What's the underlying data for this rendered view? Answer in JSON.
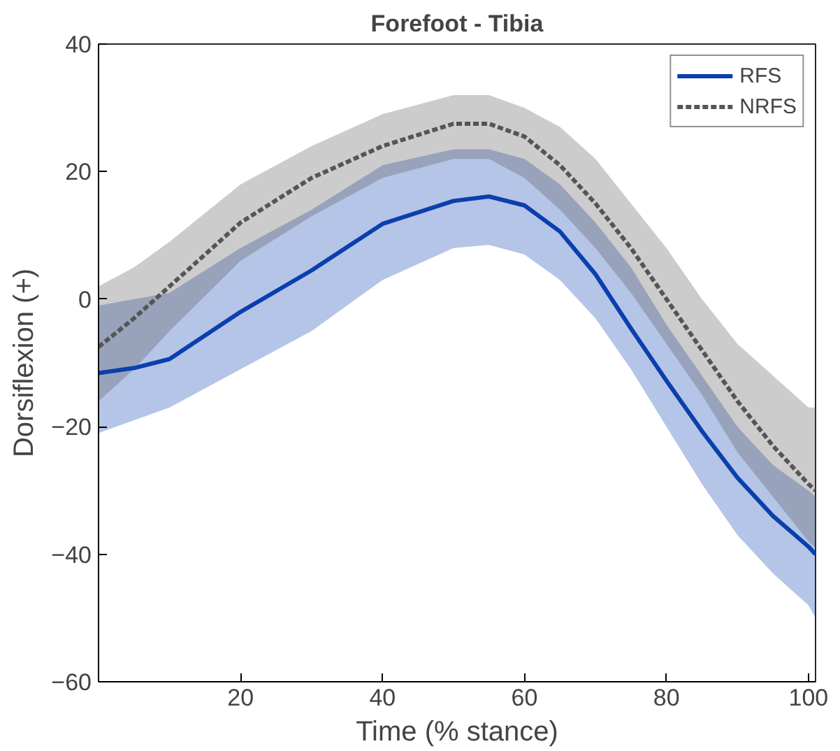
{
  "chart_data": {
    "type": "line",
    "title": "Forefoot - Tibia",
    "xlabel": "Time (% stance)",
    "ylabel": "Dorsiflexion (+)",
    "x": [
      0,
      5,
      10,
      20,
      30,
      40,
      50,
      55,
      60,
      65,
      70,
      75,
      80,
      85,
      90,
      95,
      100,
      101
    ],
    "series": [
      {
        "name": "RFS",
        "color": "#0b3fae",
        "line_style": "solid",
        "values": [
          -11.6,
          -10.8,
          -9.4,
          -2,
          4.5,
          11.8,
          15.4,
          16.1,
          14.7,
          10.6,
          3.9,
          -4.6,
          -12.8,
          -20.7,
          -28,
          -34,
          -38.8,
          -40
        ],
        "lower": [
          -21,
          -19,
          -17,
          -11,
          -5,
          3,
          8,
          8.5,
          7,
          3,
          -3,
          -11,
          -20,
          -29,
          -37,
          -43,
          -48,
          -50
        ],
        "upper": [
          -1,
          0,
          1,
          8,
          14,
          21,
          23.5,
          23.5,
          22,
          18,
          12,
          5,
          -4,
          -12,
          -20,
          -26,
          -30,
          -31
        ]
      },
      {
        "name": "NRFS",
        "color": "#555555",
        "line_style": "dashed",
        "values": [
          -7.5,
          -3,
          2,
          12,
          19,
          24,
          27.5,
          27.5,
          25.5,
          21,
          15,
          8,
          0,
          -8,
          -16,
          -23,
          -29,
          -30
        ],
        "lower": [
          -16,
          -11,
          -5,
          6,
          13,
          19,
          22,
          22,
          19,
          14,
          8,
          1,
          -7,
          -15,
          -24,
          -31,
          -38,
          -39
        ],
        "upper": [
          2,
          5,
          9,
          18,
          24,
          29,
          32,
          32,
          30,
          27,
          22,
          15,
          8,
          0,
          -7,
          -12,
          -17,
          -17
        ]
      }
    ],
    "xlim": [
      0,
      101
    ],
    "ylim": [
      -60,
      40
    ],
    "xticks": [
      20,
      40,
      60,
      80,
      100
    ],
    "yticks": [
      -60,
      -40,
      -20,
      0,
      20,
      40
    ],
    "grid": false,
    "legend": "top right"
  }
}
